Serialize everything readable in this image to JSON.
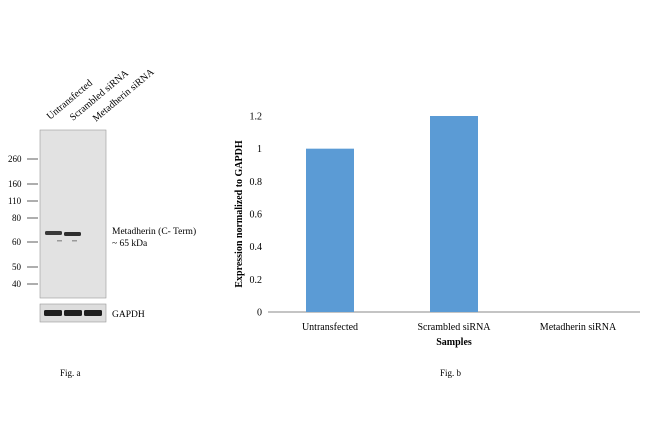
{
  "figure_a": {
    "caption": "Fig. a",
    "lanes": [
      "Untransfected",
      "Scrambled siRNA",
      "Metadherin siRNA"
    ],
    "markers": [
      "260",
      "160",
      "110",
      "80",
      "60",
      "50",
      "40"
    ],
    "band_label_line1": "Metadherin (C- Term)",
    "band_label_line2": "~ 65 kDa",
    "loading_label": "GAPDH"
  },
  "figure_b": {
    "caption": "Fig. b"
  },
  "chart_data": {
    "type": "bar",
    "categories": [
      "Untransfected",
      "Scrambled siRNA",
      "Metadherin siRNA"
    ],
    "values": [
      1.0,
      1.2,
      0
    ],
    "xlabel": "Samples",
    "ylabel": "Expression normalized to GAPDH",
    "ylim": [
      0,
      1.2
    ],
    "yticks": [
      "0",
      "0.2",
      "0.4",
      "0.6",
      "0.8",
      "1",
      "1.2"
    ],
    "grid": false,
    "bar_color": "#5b9bd5"
  }
}
